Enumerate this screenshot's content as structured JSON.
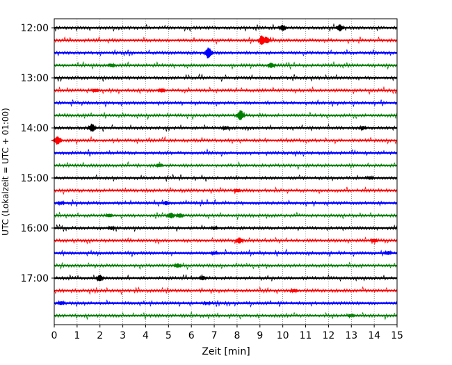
{
  "chart_data": {
    "type": "line",
    "title": "",
    "xlabel": "Zeit  [min]",
    "ylabel": "UTC (Lokalzeit = UTC + 01:00)",
    "xlim": [
      0,
      15
    ],
    "x_ticks": [
      0,
      1,
      2,
      3,
      4,
      5,
      6,
      7,
      8,
      9,
      10,
      11,
      12,
      13,
      14,
      15
    ],
    "x_tick_labels": [
      "0",
      "1",
      "2",
      "3",
      "4",
      "5",
      "6",
      "7",
      "8",
      "9",
      "10",
      "11",
      "12",
      "13",
      "14",
      "15"
    ],
    "y_tick_labels": [
      "12:00",
      "13:00",
      "14:00",
      "15:00",
      "16:00",
      "17:00"
    ],
    "y_tick_rows": [
      0,
      4,
      8,
      12,
      16,
      20
    ],
    "vertical_grid": true,
    "color_cycle": [
      "#000000",
      "#ff0000",
      "#0000ff",
      "#008000"
    ],
    "series": [
      {
        "label": "12:00",
        "events": [
          [
            10.0,
            0.5
          ],
          [
            12.5,
            0.6
          ]
        ]
      },
      {
        "label": "12:15",
        "events": [
          [
            9.1,
            0.9
          ],
          [
            9.3,
            0.6
          ]
        ]
      },
      {
        "label": "12:30",
        "events": [
          [
            6.75,
            1.0
          ]
        ]
      },
      {
        "label": "12:45",
        "events": [
          [
            9.5,
            0.45
          ],
          [
            2.5,
            0.3
          ]
        ]
      },
      {
        "label": "13:00",
        "events": []
      },
      {
        "label": "13:15",
        "events": [
          [
            4.7,
            0.35
          ],
          [
            1.8,
            0.3
          ]
        ]
      },
      {
        "label": "13:30",
        "events": []
      },
      {
        "label": "13:45",
        "events": [
          [
            8.15,
            0.95
          ]
        ]
      },
      {
        "label": "14:00",
        "events": [
          [
            1.65,
            0.7
          ],
          [
            13.5,
            0.35
          ],
          [
            7.5,
            0.3
          ]
        ]
      },
      {
        "label": "14:15",
        "events": [
          [
            0.15,
            0.75
          ]
        ]
      },
      {
        "label": "14:30",
        "events": []
      },
      {
        "label": "14:45",
        "events": [
          [
            4.6,
            0.25
          ]
        ]
      },
      {
        "label": "15:00",
        "events": [
          [
            13.8,
            0.3
          ]
        ]
      },
      {
        "label": "15:15",
        "events": [
          [
            8.0,
            0.25
          ]
        ]
      },
      {
        "label": "15:30",
        "events": [
          [
            4.9,
            0.35
          ],
          [
            0.3,
            0.3
          ]
        ]
      },
      {
        "label": "15:45",
        "events": [
          [
            5.1,
            0.5
          ],
          [
            5.5,
            0.4
          ],
          [
            2.4,
            0.3
          ]
        ]
      },
      {
        "label": "16:00",
        "events": [
          [
            7.0,
            0.3
          ],
          [
            2.5,
            0.3
          ]
        ]
      },
      {
        "label": "16:15",
        "events": [
          [
            8.1,
            0.5
          ],
          [
            14.0,
            0.3
          ]
        ]
      },
      {
        "label": "16:30",
        "events": [
          [
            14.6,
            0.35
          ],
          [
            7.0,
            0.3
          ]
        ]
      },
      {
        "label": "16:45",
        "events": [
          [
            5.4,
            0.35
          ]
        ]
      },
      {
        "label": "17:00",
        "events": [
          [
            2.0,
            0.55
          ],
          [
            6.5,
            0.35
          ]
        ]
      },
      {
        "label": "17:15",
        "events": [
          [
            10.5,
            0.25
          ]
        ]
      },
      {
        "label": "17:30",
        "events": [
          [
            0.3,
            0.35
          ],
          [
            6.7,
            0.25
          ]
        ]
      },
      {
        "label": "17:45",
        "events": [
          [
            13.0,
            0.25
          ]
        ]
      }
    ]
  }
}
